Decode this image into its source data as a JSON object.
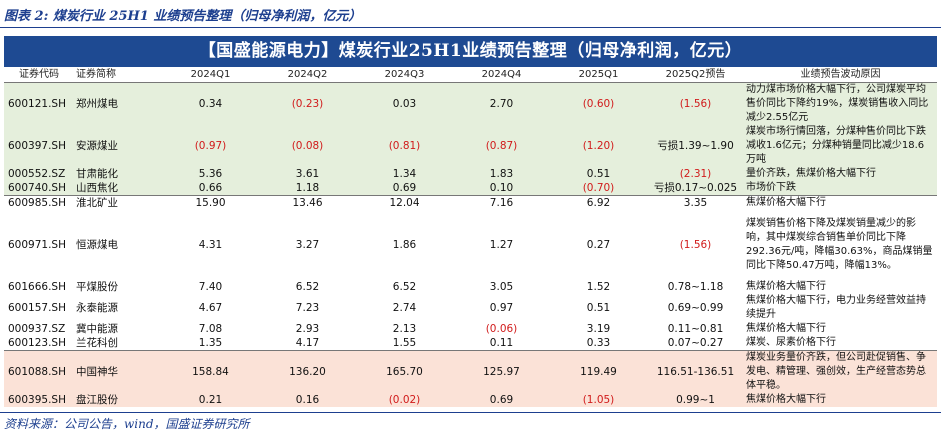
{
  "figure_title": "图表 2:  煤炭行业 25H1 业绩预告整理（归母净利润，亿元）",
  "banner_title": "【国盛能源电力】煤炭行业25H1业绩预告整理（归母净利润，亿元）",
  "headers": [
    "证券代码",
    "证券简称",
    "2024Q1",
    "2024Q2",
    "2024Q3",
    "2024Q4",
    "2025Q1",
    "2025Q2预告",
    "业绩预告波动原因"
  ],
  "rows": [
    {
      "code": "600121.SH",
      "name": "郑州煤电",
      "q1": "0.34",
      "q2": "(0.23)",
      "q3": "0.03",
      "q4": "2.70",
      "q25": "(0.60)",
      "f": "(1.56)",
      "reason": "动力煤市场价格大幅下行，公司煤炭平均售价同比下降约19%，煤炭销售收入同比减少2.55亿元"
    },
    {
      "code": "600397.SH",
      "name": "安源煤业",
      "q1": "(0.97)",
      "q2": "(0.08)",
      "q3": "(0.81)",
      "q4": "(0.87)",
      "q25": "(1.20)",
      "f": "亏损1.39~1.90",
      "reason": "煤炭市场行情回落，分煤种售价同比下跌减收1.6亿元；分煤种销量同比减少18.6万吨"
    },
    {
      "code": "000552.SZ",
      "name": "甘肃能化",
      "q1": "5.36",
      "q2": "3.61",
      "q3": "1.34",
      "q4": "1.83",
      "q25": "0.51",
      "f": "(2.31)",
      "reason": "量价齐跌，焦煤价格大幅下行"
    },
    {
      "code": "600740.SH",
      "name": "山西焦化",
      "q1": "0.66",
      "q2": "1.18",
      "q3": "0.69",
      "q4": "0.10",
      "q25": "(0.70)",
      "f": "亏损0.17~0.025",
      "reason": "市场价下跌"
    },
    {
      "code": "600985.SH",
      "name": "淮北矿业",
      "q1": "15.90",
      "q2": "13.46",
      "q3": "12.04",
      "q4": "7.16",
      "q25": "6.92",
      "f": "3.35",
      "reason": "焦煤价格大幅下行"
    },
    {
      "code": "600971.SH",
      "name": "恒源煤电",
      "q1": "4.31",
      "q2": "3.27",
      "q3": "1.86",
      "q4": "1.27",
      "q25": "0.27",
      "f": "(1.56)",
      "reason": "煤炭销售价格下降及煤炭销量减少的影响，其中煤炭综合销售单价同比下降292.36元/吨，降幅30.63%，商品煤销量同比下降50.47万吨，降幅13%。"
    },
    {
      "code": "601666.SH",
      "name": "平煤股份",
      "q1": "7.40",
      "q2": "6.52",
      "q3": "6.52",
      "q4": "3.05",
      "q25": "1.52",
      "f": "0.78~1.18",
      "reason": "焦煤价格大幅下行"
    },
    {
      "code": "600157.SH",
      "name": "永泰能源",
      "q1": "4.67",
      "q2": "7.23",
      "q3": "2.74",
      "q4": "0.97",
      "q25": "0.51",
      "f": "0.69~0.99",
      "reason": "焦煤价格大幅下行，电力业务经营效益持续提升"
    },
    {
      "code": "000937.SZ",
      "name": "冀中能源",
      "q1": "7.08",
      "q2": "2.93",
      "q3": "2.13",
      "q4": "(0.06)",
      "q25": "3.19",
      "f": "0.11~0.81",
      "reason": "焦煤价格大幅下行"
    },
    {
      "code": "600123.SH",
      "name": "兰花科创",
      "q1": "1.35",
      "q2": "4.17",
      "q3": "1.55",
      "q4": "0.11",
      "q25": "0.33",
      "f": "0.07~0.27",
      "reason": "煤炭、尿素价格下行"
    },
    {
      "code": "601088.SH",
      "name": "中国神华",
      "q1": "158.84",
      "q2": "136.20",
      "q3": "165.70",
      "q4": "125.97",
      "q25": "119.49",
      "f": "116.51-136.51",
      "reason": "煤炭业务量价齐跌，但公司赴促销售、争发电、精管理、强创效，生产经营态势总体平稳。"
    },
    {
      "code": "600395.SH",
      "name": "盘江股份",
      "q1": "0.21",
      "q2": "0.16",
      "q3": "(0.02)",
      "q4": "0.69",
      "q25": "(1.05)",
      "f": "0.99~1",
      "reason": "焦煤价格大幅下行"
    }
  ],
  "source": "资料来源：公司公告，wind，国盛证券研究所"
}
